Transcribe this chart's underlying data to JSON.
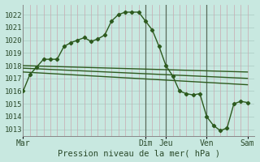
{
  "background_color": "#c8e8e0",
  "grid_color_h": "#b8d8d0",
  "grid_color_v": "#c0a0a8",
  "line_color": "#2d5a1e",
  "vline_color": "#5a6a5a",
  "title": "Pression niveau de la mer( hPa )",
  "ylim": [
    1012.5,
    1022.8
  ],
  "yticks": [
    1013,
    1014,
    1015,
    1016,
    1017,
    1018,
    1019,
    1020,
    1021,
    1022
  ],
  "x_day_labels": [
    "Mar",
    "Dim",
    "Jeu",
    "Ven",
    "Sam"
  ],
  "x_day_positions": [
    0,
    18,
    21,
    27,
    33
  ],
  "xlim": [
    0,
    34
  ],
  "main_series_x": [
    0,
    1,
    2,
    3,
    4,
    5,
    6,
    7,
    8,
    9,
    10,
    11,
    12,
    13,
    14,
    15,
    16,
    17,
    18,
    19,
    20,
    21,
    22,
    23,
    24,
    25,
    26,
    27,
    28,
    29,
    30,
    31,
    32,
    33
  ],
  "main_series_y": [
    1016.0,
    1017.3,
    1017.9,
    1018.5,
    1018.5,
    1018.5,
    1019.5,
    1019.8,
    1020.0,
    1020.2,
    1019.9,
    1020.1,
    1020.4,
    1021.5,
    1022.0,
    1022.2,
    1022.2,
    1022.2,
    1021.5,
    1020.8,
    1019.5,
    1018.0,
    1017.2,
    1016.0,
    1015.8,
    1015.7,
    1015.8,
    1014.0,
    1013.3,
    1012.9,
    1013.1,
    1015.0,
    1015.2,
    1015.1
  ],
  "flat_lines": [
    {
      "x": [
        0,
        33
      ],
      "y": [
        1018.0,
        1017.5
      ]
    },
    {
      "x": [
        0,
        33
      ],
      "y": [
        1017.8,
        1017.0
      ]
    },
    {
      "x": [
        0,
        33
      ],
      "y": [
        1017.5,
        1016.5
      ]
    }
  ],
  "vline_positions": [
    18,
    21,
    27
  ],
  "n_vgrid": 34,
  "figsize": [
    3.2,
    2.0
  ],
  "dpi": 100,
  "title_fontsize": 7.5,
  "tick_fontsize": 6.5
}
